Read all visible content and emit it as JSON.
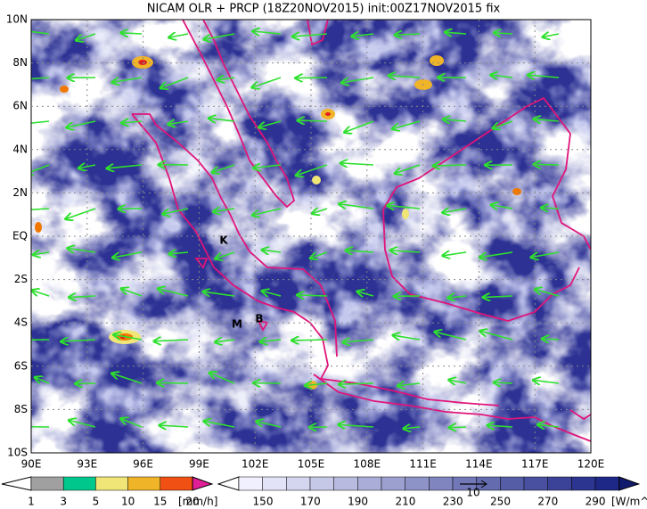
{
  "title": "NICAM OLR + PRCP (18Z20NOV2015) init:00Z17NOV2015 fix",
  "map": {
    "lat_labels": [
      "10N",
      "8N",
      "6N",
      "4N",
      "2N",
      "EQ",
      "2S",
      "4S",
      "6S",
      "8S",
      "10S"
    ],
    "lon_labels": [
      "90E",
      "93E",
      "96E",
      "99E",
      "102E",
      "105E",
      "108E",
      "111E",
      "114E",
      "117E",
      "120E"
    ],
    "places": [
      "K",
      "M",
      "B"
    ]
  },
  "precip_scale": {
    "labels": [
      "1",
      "3",
      "5",
      "10",
      "15",
      "20"
    ],
    "unit": "[mm/h]"
  },
  "olr_scale": {
    "labels": [
      "150",
      "170",
      "190",
      "210",
      "230",
      "250",
      "270",
      "290"
    ],
    "unit": "[W/m^2]"
  },
  "wind_reference": "10"
}
